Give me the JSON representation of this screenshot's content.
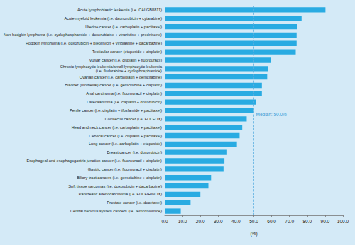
{
  "chart_data": {
    "type": "bar",
    "orientation": "horizontal",
    "categories": [
      "Acute lymphoblastic leukemia (i.e. CALGB8811)",
      "Acute myeloid leukemia (i.e. daunorubicin + cytarabine)",
      "Uterine cancer (i.e. carboplatin + paclitaxel)",
      "Non-hodgkin lymphoma (i.e. cyclophosphamide + doxorubicine + vincristine + prednisone)",
      "Hodgkin lymphoma (i.e. doxorubicin + bleomycin + vinblastine + dacarbazine)",
      "Testicular cancer (etoposide + cisplatin)",
      "Vulvar cancer (i.e. cisplatin + fluorouracil)",
      "Chronic lymphocytic leukemia/small lymphocytic leukemia\n(i.e. fludarabine + cyclophosphamide)",
      "Ovarian cancer (i.e. carboplatin + gemcitabine)",
      "Bladder (urothelial) cancer (i.e. gemcitabine + cisplatin)",
      "Anal carcinoma (i.e. fluorouracil + cisplatin)",
      "Osteosarcoma (i.e. cisplatin + doxorubicin)",
      "Penile cancer (i.e. cisplatin + ifosfamide + paclitaxel)",
      "Colorectal cancer (i.e. FOLFOX)",
      "Head and neck cancer (i.e. carboplatin + paclitaxel)",
      "Cervical cancer (i.e. cisplatin + paclitaxel)",
      "Lung cancer (i.e. carboplatin + etoposide)",
      "Breast cancer (i.e. doxorubicin)",
      "Esophageal and esophagogastric junction cancer (i.e. fluorouracil + cisplatin)",
      "Gastric cancer (i.e. fluorouracil + cisplatin)",
      "Biliary tract cancers (i.e. gemcitabine + cisplatin)",
      "Soft tissue sarcomas (i.e. doxorubicin + dacarbazine)",
      "Pancreatic adenocarcinoma (i.e. FOLFIRINOX)",
      "Prostate cancer (i.e. docetaxel)",
      "Central nervous system cancers (i.e. temozolomide)"
    ],
    "values": [
      90.2,
      76.8,
      74.5,
      74.0,
      74.0,
      73.5,
      59.5,
      58.0,
      57.5,
      54.5,
      54.5,
      51.0,
      50.0,
      46.0,
      43.5,
      42.0,
      40.5,
      35.0,
      33.5,
      33.0,
      26.0,
      24.5,
      20.0,
      14.5,
      9.0
    ],
    "color": "#29abe2",
    "x_label": "(%)",
    "xlim": [
      0,
      100
    ],
    "xticks": [
      {
        "value": 0,
        "label": "0.0"
      },
      {
        "value": 10,
        "label": "10.0"
      },
      {
        "value": 20,
        "label": "20.0"
      },
      {
        "value": 30,
        "label": "30.0"
      },
      {
        "value": 40,
        "label": "40.0"
      },
      {
        "value": 50,
        "label": "50.0"
      },
      {
        "value": 60,
        "label": "60.0"
      },
      {
        "value": 70,
        "label": "70.0"
      },
      {
        "value": 80,
        "label": "80.0"
      },
      {
        "value": 90,
        "label": "90.0"
      },
      {
        "value": 100,
        "label": "100.0"
      }
    ],
    "annotations": [
      {
        "value": 50,
        "label": "Median: 50.0%"
      }
    ],
    "grid": false,
    "data_labels": false
  }
}
